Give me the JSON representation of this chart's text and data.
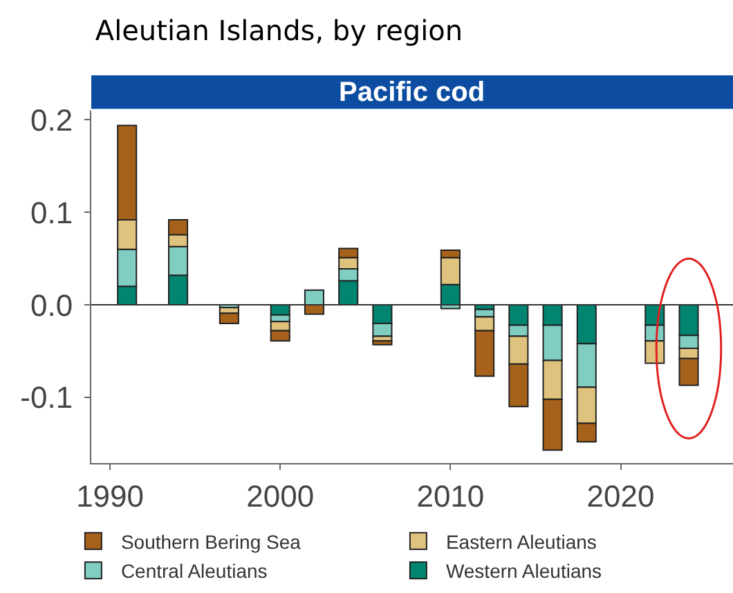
{
  "chart_data": {
    "type": "bar",
    "title": "Aleutian Islands, by region",
    "subtitle": "Pacific cod",
    "x": [
      1991,
      1994,
      1997,
      2000,
      2002,
      2004,
      2006,
      2010,
      2012,
      2014,
      2016,
      2018,
      2022,
      2024
    ],
    "stacked": true,
    "series": [
      {
        "name": "Western Aleutians",
        "color": "#018571",
        "values": [
          0.02,
          0.032,
          null,
          -0.011,
          null,
          0.026,
          -0.02,
          0.022,
          -0.005,
          -0.022,
          -0.022,
          -0.042,
          -0.022,
          -0.033
        ]
      },
      {
        "name": "Central Aleutians",
        "color": "#80cdc1",
        "values": [
          0.04,
          0.031,
          -0.003,
          -0.007,
          0.016,
          0.013,
          -0.014,
          -0.004,
          -0.008,
          -0.012,
          -0.038,
          -0.047,
          -0.017,
          -0.014
        ]
      },
      {
        "name": "Eastern Aleutians",
        "color": "#dfc27d",
        "values": [
          0.032,
          0.013,
          -0.006,
          -0.01,
          null,
          0.012,
          -0.005,
          0.029,
          -0.015,
          -0.03,
          -0.042,
          -0.039,
          -0.024,
          -0.011
        ]
      },
      {
        "name": "Southern Bering Sea",
        "color": "#a6611a",
        "values": [
          0.102,
          0.016,
          -0.011,
          -0.011,
          -0.01,
          0.01,
          -0.004,
          0.008,
          -0.049,
          -0.046,
          -0.055,
          -0.02,
          null,
          -0.029
        ]
      }
    ],
    "ref_lines": [
      {
        "axis": "y",
        "value": 0,
        "color": "#333333"
      }
    ],
    "xlim": [
      1988.9,
      2026.6
    ],
    "xticks": [
      1990,
      2000,
      2010,
      2020
    ],
    "ylim": [
      -0.171,
      0.21
    ],
    "yticks": [
      {
        "value": -0.1,
        "label": "-0.1"
      },
      {
        "value": 0,
        "label": "0.0"
      },
      {
        "value": 0.1,
        "label": "0.1"
      },
      {
        "value": 0.2,
        "label": "0.2"
      }
    ],
    "legend": "bottom"
  }
}
